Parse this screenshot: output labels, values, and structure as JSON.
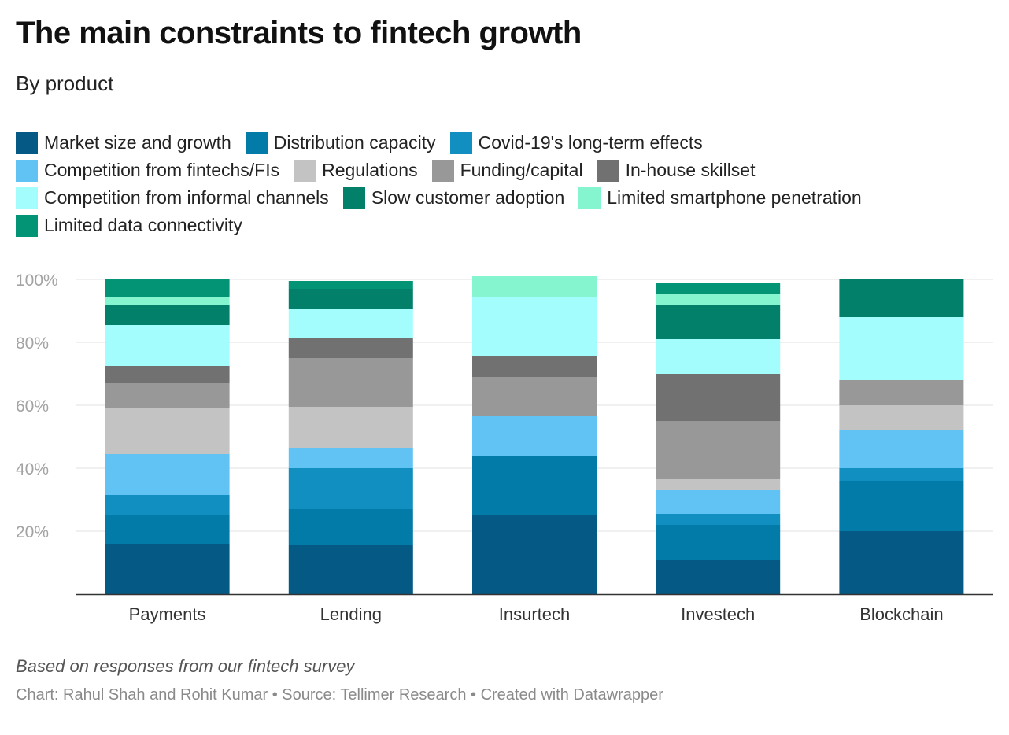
{
  "header": {
    "title": "The main constraints to fintech growth",
    "subtitle": "By product"
  },
  "legend_rows": [
    [
      {
        "label": "Market size and growth",
        "color": "#045a84"
      },
      {
        "label": "Distribution capacity",
        "color": "#027ba8"
      },
      {
        "label": "Covid-19's long-term effects",
        "color": "#118fc1"
      }
    ],
    [
      {
        "label": "Competition from fintechs/FIs",
        "color": "#61c3f4"
      },
      {
        "label": "Regulations",
        "color": "#c3c3c3"
      },
      {
        "label": "Funding/capital",
        "color": "#989898"
      },
      {
        "label": "In-house skillset",
        "color": "#717171"
      }
    ],
    [
      {
        "label": "Competition from informal channels",
        "color": "#a3fdfd"
      },
      {
        "label": "Slow customer adoption",
        "color": "#02806a"
      },
      {
        "label": "Limited smartphone penetration",
        "color": "#84f5cf"
      }
    ],
    [
      {
        "label": "Limited data connectivity",
        "color": "#029474"
      }
    ]
  ],
  "chart_data": {
    "type": "bar",
    "stacked": true,
    "categories": [
      "Payments",
      "Lending",
      "Insurtech",
      "Investech",
      "Blockchain"
    ],
    "ylim": [
      0,
      100
    ],
    "yticks": [
      {
        "value": 20,
        "label": "20%"
      },
      {
        "value": 40,
        "label": "40%"
      },
      {
        "value": 60,
        "label": "60%"
      },
      {
        "value": 80,
        "label": "80%"
      },
      {
        "value": 100,
        "label": "100%"
      }
    ],
    "series": [
      {
        "name": "Market size and growth",
        "color": "#045a84",
        "values": [
          16,
          15.5,
          25,
          11,
          20
        ]
      },
      {
        "name": "Distribution capacity",
        "color": "#027ba8",
        "values": [
          9,
          11.5,
          19,
          11,
          16
        ]
      },
      {
        "name": "Covid-19's long-term effects",
        "color": "#118fc1",
        "values": [
          6.5,
          13,
          0,
          3.5,
          4
        ]
      },
      {
        "name": "Competition from fintechs/FIs",
        "color": "#61c3f4",
        "values": [
          13,
          6.5,
          12.5,
          7.5,
          12
        ]
      },
      {
        "name": "Regulations",
        "color": "#c3c3c3",
        "values": [
          14.5,
          13,
          0,
          3.5,
          8
        ]
      },
      {
        "name": "Funding/capital",
        "color": "#989898",
        "values": [
          8,
          15.5,
          12.5,
          18.5,
          8
        ]
      },
      {
        "name": "In-house skillset",
        "color": "#717171",
        "values": [
          5.5,
          6.5,
          6.5,
          15,
          0
        ]
      },
      {
        "name": "Competition from informal channels",
        "color": "#a3fdfd",
        "values": [
          13,
          9,
          19,
          11,
          20
        ]
      },
      {
        "name": "Slow customer adoption",
        "color": "#02806a",
        "values": [
          6.5,
          6.5,
          0,
          11,
          12
        ]
      },
      {
        "name": "Limited smartphone penetration",
        "color": "#84f5cf",
        "values": [
          2.5,
          0,
          6.5,
          3.5,
          0
        ]
      },
      {
        "name": "Limited data connectivity",
        "color": "#029474",
        "values": [
          5.5,
          2.5,
          0,
          3.5,
          0
        ]
      }
    ]
  },
  "footer": {
    "note": "Based on responses from our fintech survey",
    "credits": "Chart: Rahul Shah and Rohit Kumar • Source: Tellimer Research • Created with Datawrapper"
  }
}
